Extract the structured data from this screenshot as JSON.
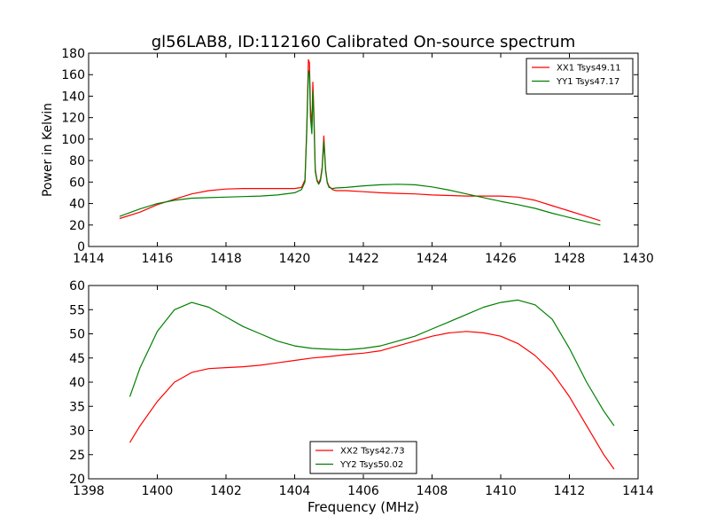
{
  "figure": {
    "title": "gl56LAB8, ID:112160 Calibrated On-source spectrum",
    "shared_xlabel": "Frequency (MHz)"
  },
  "chart_data": [
    {
      "type": "line",
      "title": "gl56LAB8, ID:112160 Calibrated On-source spectrum",
      "xlabel": "",
      "ylabel": "Power in Kelvin",
      "xlim": [
        1414,
        1430
      ],
      "ylim": [
        0,
        180
      ],
      "xticks": [
        1414,
        1416,
        1418,
        1420,
        1422,
        1424,
        1426,
        1428,
        1430
      ],
      "yticks": [
        0,
        20,
        40,
        60,
        80,
        100,
        120,
        140,
        160,
        180
      ],
      "grid": false,
      "legend_position": "top-right",
      "series": [
        {
          "name": "XX1 Tsys49.11",
          "color": "#ff0000",
          "x": [
            1414.9,
            1415.5,
            1416.0,
            1416.5,
            1417.0,
            1417.5,
            1418.0,
            1418.5,
            1419.0,
            1419.5,
            1420.0,
            1420.2,
            1420.3,
            1420.35,
            1420.4,
            1420.43,
            1420.46,
            1420.5,
            1420.53,
            1420.56,
            1420.6,
            1420.65,
            1420.7,
            1420.75,
            1420.8,
            1420.85,
            1420.9,
            1420.95,
            1421.0,
            1421.1,
            1421.2,
            1421.5,
            1422.0,
            1422.5,
            1423.0,
            1423.5,
            1424.0,
            1424.5,
            1425.0,
            1425.5,
            1426.0,
            1426.5,
            1427.0,
            1427.5,
            1428.0,
            1428.5,
            1428.9
          ],
          "y": [
            26,
            32,
            39,
            44,
            49,
            52,
            53.5,
            54,
            54,
            54,
            54,
            55,
            62,
            110,
            174,
            171,
            130,
            110,
            153,
            125,
            72,
            62,
            59,
            63,
            74,
            103,
            72,
            60,
            56,
            53,
            52,
            52,
            51,
            50,
            49.5,
            49,
            48,
            47.5,
            47,
            47,
            47,
            46,
            43,
            38,
            33,
            28,
            24
          ]
        },
        {
          "name": "YY1 Tsys47.17",
          "color": "#008000",
          "x": [
            1414.9,
            1415.5,
            1416.0,
            1416.5,
            1417.0,
            1417.5,
            1418.0,
            1418.5,
            1419.0,
            1419.5,
            1420.0,
            1420.2,
            1420.3,
            1420.35,
            1420.4,
            1420.43,
            1420.46,
            1420.5,
            1420.53,
            1420.56,
            1420.6,
            1420.65,
            1420.7,
            1420.75,
            1420.8,
            1420.85,
            1420.9,
            1420.95,
            1421.0,
            1421.1,
            1421.2,
            1421.5,
            1422.0,
            1422.5,
            1423.0,
            1423.5,
            1424.0,
            1424.5,
            1425.0,
            1425.5,
            1426.0,
            1426.5,
            1427.0,
            1427.5,
            1428.0,
            1428.5,
            1428.9
          ],
          "y": [
            28,
            35,
            40,
            43,
            45,
            45.5,
            46,
            46.5,
            47,
            48,
            50,
            53,
            60,
            105,
            164,
            160,
            120,
            105,
            145,
            118,
            70,
            61,
            58,
            61,
            72,
            98,
            70,
            59,
            55,
            54,
            54.5,
            55,
            56.5,
            57.5,
            58,
            57.5,
            55.5,
            52.5,
            49,
            45.5,
            42,
            39,
            35.5,
            31,
            27,
            23,
            20
          ]
        }
      ]
    },
    {
      "type": "line",
      "title": "",
      "xlabel": "Frequency (MHz)",
      "ylabel": "",
      "xlim": [
        1398,
        1414
      ],
      "ylim": [
        20,
        60
      ],
      "xticks": [
        1398,
        1400,
        1402,
        1404,
        1406,
        1408,
        1410,
        1412,
        1414
      ],
      "yticks": [
        20,
        25,
        30,
        35,
        40,
        45,
        50,
        55,
        60
      ],
      "grid": false,
      "legend_position": "bottom-center",
      "series": [
        {
          "name": "XX2 Tsys42.73",
          "color": "#ff0000",
          "x": [
            1399.2,
            1399.5,
            1400.0,
            1400.5,
            1401.0,
            1401.5,
            1402.0,
            1402.5,
            1403.0,
            1403.5,
            1404.0,
            1404.5,
            1405.0,
            1405.5,
            1406.0,
            1406.5,
            1407.0,
            1407.5,
            1408.0,
            1408.5,
            1409.0,
            1409.5,
            1410.0,
            1410.5,
            1411.0,
            1411.5,
            1412.0,
            1412.5,
            1413.0,
            1413.3
          ],
          "y": [
            27.5,
            31,
            36,
            40,
            42,
            42.8,
            43,
            43.2,
            43.5,
            44,
            44.5,
            45,
            45.3,
            45.7,
            46,
            46.5,
            47.5,
            48.5,
            49.5,
            50.2,
            50.5,
            50.2,
            49.5,
            48,
            45.5,
            42,
            37,
            31,
            25,
            22
          ]
        },
        {
          "name": "YY2 Tsys50.02",
          "color": "#008000",
          "x": [
            1399.2,
            1399.5,
            1400.0,
            1400.5,
            1401.0,
            1401.5,
            1402.0,
            1402.5,
            1403.0,
            1403.5,
            1404.0,
            1404.5,
            1405.0,
            1405.5,
            1406.0,
            1406.5,
            1407.0,
            1407.5,
            1408.0,
            1408.5,
            1409.0,
            1409.5,
            1410.0,
            1410.5,
            1411.0,
            1411.5,
            1412.0,
            1412.5,
            1413.0,
            1413.3
          ],
          "y": [
            37,
            43,
            50.5,
            55,
            56.5,
            55.5,
            53.5,
            51.5,
            50,
            48.5,
            47.5,
            47,
            46.8,
            46.7,
            47,
            47.5,
            48.5,
            49.5,
            51,
            52.5,
            54,
            55.5,
            56.5,
            57,
            56,
            53,
            47,
            40,
            34,
            31
          ]
        }
      ]
    }
  ]
}
